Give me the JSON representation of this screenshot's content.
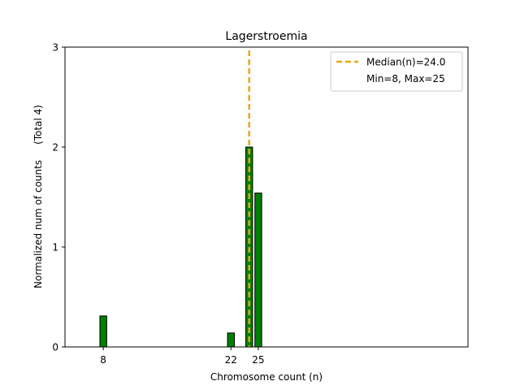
{
  "chart_data": {
    "type": "bar",
    "title": "Lagerstroemia",
    "xlabel": "Chromosome count (n)",
    "ylabel": "Normalized num of counts     (Total 4)",
    "xlim": [
      3.8,
      48
    ],
    "ylim": [
      0,
      3
    ],
    "xticks": [
      8,
      22,
      25
    ],
    "yticks": [
      0,
      1,
      2,
      3
    ],
    "bar_width": 0.75,
    "bar_color": "#008000",
    "bar_edge_color": "#000000",
    "bars": [
      {
        "x": 8,
        "value": 0.31
      },
      {
        "x": 22,
        "value": 0.14
      },
      {
        "x": 24,
        "value": 2.0
      },
      {
        "x": 25,
        "value": 1.54
      }
    ],
    "median": {
      "value": 24.0,
      "color": "#E6A817",
      "style": "dashed"
    },
    "legend": {
      "position": "top-right",
      "entries": [
        "Median(n)=24.0",
        "Min=8, Max=25"
      ]
    },
    "grid": false
  }
}
